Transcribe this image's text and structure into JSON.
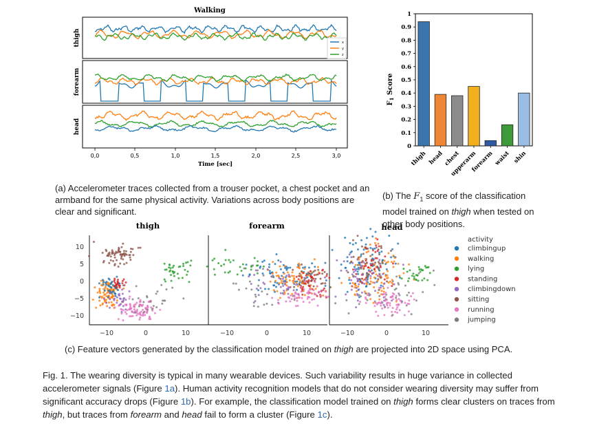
{
  "panel_a": {
    "title": "Walking",
    "row_labels": [
      "thigh",
      "forearm",
      "head"
    ],
    "legend": [
      "x",
      "y",
      "z"
    ],
    "xlabel": "Time [sec]",
    "xticks": [
      "0,0",
      "0,5",
      "1,0",
      "1,5",
      "2,0",
      "2,5",
      "3,0"
    ],
    "caption": "(a) Accelerometer traces collected from a trouser pocket, a chest pocket and an armband for the same physical activity. Variations across body positions are clear and significant.",
    "colors": {
      "x": "#1f77b4",
      "y": "#ff7f0e",
      "z": "#2ca02c"
    }
  },
  "panel_b": {
    "ylabel": "F1 Score",
    "caption_before": "(b) The ",
    "caption_f": "F",
    "caption_sub": "1",
    "caption_mid": " score of the classification model trained on ",
    "caption_em": "thigh",
    "caption_after": " when tested on other body positions."
  },
  "panel_c": {
    "subplot_titles": [
      "thigh",
      "forearm",
      "head"
    ],
    "legend_title": "activity",
    "yticks": [
      "10",
      "5",
      "0",
      "−5",
      "−10"
    ],
    "xticks": [
      "−10",
      "0",
      "10"
    ],
    "caption_before": "(c) Feature vectors generated by the classification model trained on ",
    "caption_em": "thigh",
    "caption_after": " are projected into 2D space using PCA.",
    "activities": [
      {
        "name": "climbingup",
        "color": "#1f77b4"
      },
      {
        "name": "walking",
        "color": "#ff7f0e"
      },
      {
        "name": "lying",
        "color": "#2ca02c"
      },
      {
        "name": "standing",
        "color": "#d62728"
      },
      {
        "name": "climbingdown",
        "color": "#9467bd"
      },
      {
        "name": "sitting",
        "color": "#8c564b"
      },
      {
        "name": "running",
        "color": "#e377c2"
      },
      {
        "name": "jumping",
        "color": "#7f7f7f"
      }
    ]
  },
  "figure_caption": {
    "p1": "Fig. 1. The wearing diversity is typical in many wearable devices. Such variability results in huge variance in collected accelerometer signals (Figure ",
    "r1": "1a",
    "p2": "). Human activity recognition models that do not consider wearing diversity may suffer from significant accuracy drops (Figure ",
    "r2": "1b",
    "p3": "). For example, the classification model trained on ",
    "e1": "thigh",
    "p4": " forms clear clusters on traces from ",
    "e2": "thigh",
    "p5": ", but traces from ",
    "e3": "forearm",
    "p6": " and ",
    "e4": "head",
    "p7": " fail to form a cluster (Figure ",
    "r3": "1c",
    "p8": ")."
  },
  "chart_data": [
    {
      "type": "bar",
      "categories": [
        "thigh",
        "head",
        "chest",
        "upperarm",
        "forearm",
        "waist",
        "shin"
      ],
      "values": [
        0.94,
        0.39,
        0.38,
        0.45,
        0.04,
        0.16,
        0.4
      ],
      "colors": [
        "#3b75af",
        "#ef8636",
        "#8c8c8c",
        "#f2b01e",
        "#2f58a5",
        "#3d9a3a",
        "#9bbde3"
      ],
      "yticks": [
        "0",
        "0.1",
        "0.2",
        "0.3",
        "0.4",
        "0.5",
        "0.6",
        "0.7",
        "0.8",
        "0.9",
        "1"
      ],
      "ylabel": "F1 Score",
      "ylim": [
        0,
        1
      ]
    }
  ]
}
